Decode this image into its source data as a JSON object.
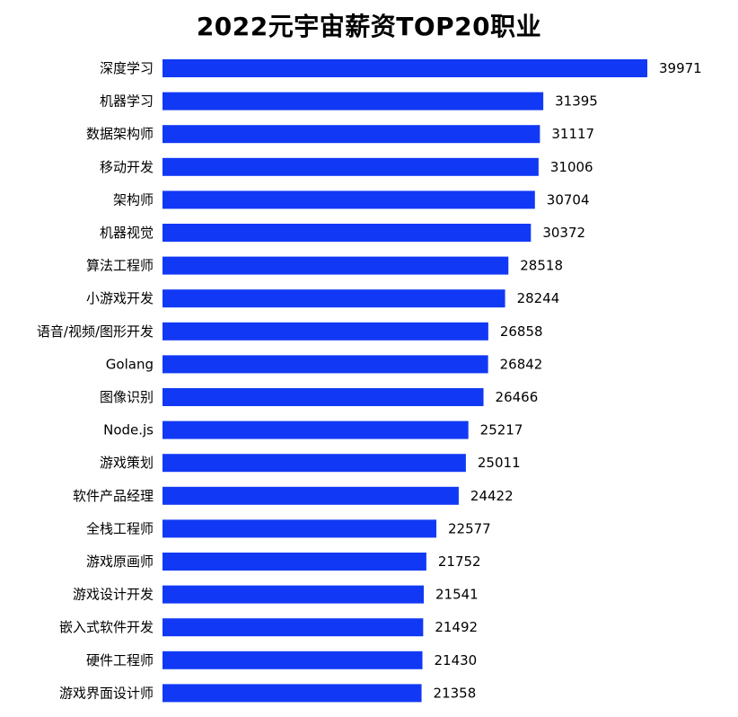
{
  "chart_data": {
    "type": "bar",
    "orientation": "horizontal",
    "title": "2022元宇宙薪资TOP20职业",
    "xlabel": "",
    "ylabel": "",
    "grid": false,
    "bar_color": "#1139F5",
    "categories": [
      "深度学习",
      "机器学习",
      "数据架构师",
      "移动开发",
      "架构师",
      "机器视觉",
      "算法工程师",
      "小游戏开发",
      "语音/视频/图形开发",
      "Golang",
      "图像识别",
      "Node.js",
      "游戏策划",
      "软件产品经理",
      "全栈工程师",
      "游戏原画师",
      "游戏设计开发",
      "嵌入式软件开发",
      "硬件工程师",
      "游戏界面设计师"
    ],
    "values": [
      39971,
      31395,
      31117,
      31006,
      30704,
      30372,
      28518,
      28244,
      26858,
      26842,
      26466,
      25217,
      25011,
      24422,
      22577,
      21752,
      21541,
      21492,
      21430,
      21358
    ],
    "value_labels": [
      "39971",
      "31395",
      "31117",
      "31006",
      "30704",
      "30372",
      "28518",
      "28244",
      "26858",
      "26842",
      "26466",
      "25217",
      "25011",
      "24422",
      "22577",
      "21752",
      "21541",
      "21492",
      "21430",
      "21358"
    ]
  }
}
